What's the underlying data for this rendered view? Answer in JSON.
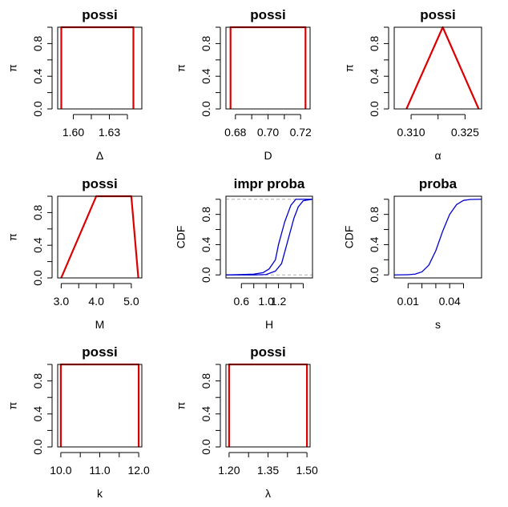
{
  "figure": {
    "background": "#ffffff",
    "axis_color": "#000000"
  },
  "chart_data": [
    {
      "type": "line",
      "title": "possi",
      "xlabel": "Δ",
      "ylabel": "π",
      "xlim": [
        1.587,
        1.657
      ],
      "ylim": [
        0,
        1
      ],
      "xticks": [
        1.6,
        1.615,
        1.63,
        1.645
      ],
      "xticklabels": [
        "1.60",
        "",
        "1.63",
        ""
      ],
      "yticks": [
        0,
        0.2,
        0.4,
        0.6,
        0.8,
        1.0
      ],
      "yticklabels": [
        "0.0",
        "",
        "0.4",
        "",
        "0.8",
        ""
      ],
      "series": [
        {
          "color": "#dd0000",
          "style": "solid",
          "x": [
            1.59,
            1.59,
            1.65,
            1.65
          ],
          "y": [
            0,
            1,
            1,
            0
          ]
        }
      ]
    },
    {
      "type": "line",
      "title": "possi",
      "xlabel": "D",
      "ylabel": "π",
      "xlim": [
        0.6742,
        0.7258
      ],
      "ylim": [
        0,
        1
      ],
      "xticks": [
        0.68,
        0.69,
        0.7,
        0.71,
        0.72
      ],
      "xticklabels": [
        "0.68",
        "",
        "0.70",
        "",
        "0.72"
      ],
      "yticks": [
        0,
        0.2,
        0.4,
        0.6,
        0.8,
        1.0
      ],
      "yticklabels": [
        "0.0",
        "",
        "0.4",
        "",
        "0.8",
        ""
      ],
      "series": [
        {
          "color": "#dd0000",
          "style": "solid",
          "x": [
            0.677,
            0.677,
            0.723,
            0.723
          ],
          "y": [
            0,
            1,
            1,
            0
          ]
        }
      ]
    },
    {
      "type": "line",
      "title": "possi",
      "xlabel": "α",
      "ylabel": "π",
      "xlim": [
        0.3053,
        0.3296
      ],
      "ylim": [
        0,
        1
      ],
      "xticks": [
        0.31,
        0.3175,
        0.325
      ],
      "xticklabels": [
        "0.310",
        "",
        "0.325"
      ],
      "yticks": [
        0,
        0.2,
        0.4,
        0.6,
        0.8,
        1.0
      ],
      "yticklabels": [
        "0.0",
        "",
        "0.4",
        "",
        "0.8",
        ""
      ],
      "series": [
        {
          "color": "#dd0000",
          "style": "solid",
          "x": [
            0.3087,
            0.3188,
            0.3288
          ],
          "y": [
            0,
            1,
            0
          ]
        }
      ]
    },
    {
      "type": "line",
      "title": "possi",
      "xlabel": "M",
      "ylabel": "π",
      "xlim": [
        2.9,
        5.3
      ],
      "ylim": [
        0,
        1
      ],
      "xticks": [
        3.0,
        3.5,
        4.0,
        4.5,
        5.0
      ],
      "xticklabels": [
        "3.0",
        "",
        "4.0",
        "",
        "5.0"
      ],
      "yticks": [
        0,
        0.2,
        0.4,
        0.6,
        0.8,
        1.0
      ],
      "yticklabels": [
        "0.0",
        "",
        "0.4",
        "",
        "0.8",
        ""
      ],
      "series": [
        {
          "color": "#dd0000",
          "style": "solid",
          "x": [
            3.0,
            4.0,
            5.0,
            5.2
          ],
          "y": [
            0,
            1,
            1,
            0
          ]
        }
      ]
    },
    {
      "type": "line",
      "title": "impr proba",
      "xlabel": "H",
      "ylabel": "CDF",
      "xlim": [
        0.35,
        1.75
      ],
      "ylim": [
        -0.04,
        1.04
      ],
      "xticks": [
        0.6,
        0.8,
        1.0,
        1.2,
        1.4,
        1.6
      ],
      "xticklabels": [
        "0.6",
        "",
        "1.0",
        "1.2",
        "",
        ""
      ],
      "yticks": [
        0,
        0.2,
        0.4,
        0.6,
        0.8,
        1.0
      ],
      "yticklabels": [
        "0.0",
        "",
        "0.4",
        "",
        "0.8",
        ""
      ],
      "hlines": [
        0,
        1
      ],
      "series": [
        {
          "color": "#0000cc",
          "style": "solid",
          "x": [
            0.35,
            0.6,
            0.8,
            0.95,
            1.05,
            1.15,
            1.2,
            1.3,
            1.4,
            1.48,
            1.75
          ],
          "y": [
            0,
            0.005,
            0.01,
            0.03,
            0.08,
            0.2,
            0.4,
            0.7,
            0.92,
            1.0,
            1.0
          ]
        },
        {
          "color": "#0000cc",
          "style": "solid",
          "x": [
            0.35,
            0.8,
            1.0,
            1.15,
            1.25,
            1.35,
            1.45,
            1.52,
            1.6,
            1.75
          ],
          "y": [
            0,
            0,
            0.005,
            0.05,
            0.15,
            0.45,
            0.75,
            0.9,
            0.98,
            1.0
          ]
        }
      ]
    },
    {
      "type": "line",
      "title": "proba",
      "xlabel": "s",
      "ylabel": "CDF",
      "xlim": [
        0.0,
        0.063
      ],
      "ylim": [
        -0.04,
        1.04
      ],
      "xticks": [
        0.01,
        0.02,
        0.03,
        0.04,
        0.05
      ],
      "xticklabels": [
        "0.01",
        "",
        "",
        "0.04",
        ""
      ],
      "yticks": [
        0,
        0.2,
        0.4,
        0.6,
        0.8,
        1.0
      ],
      "yticklabels": [
        "0.0",
        "",
        "0.4",
        "",
        "0.8",
        ""
      ],
      "series": [
        {
          "color": "#0000cc",
          "style": "solid",
          "x": [
            0.0,
            0.01,
            0.015,
            0.02,
            0.025,
            0.03,
            0.035,
            0.04,
            0.045,
            0.05,
            0.055,
            0.063
          ],
          "y": [
            0,
            0.002,
            0.01,
            0.04,
            0.13,
            0.32,
            0.58,
            0.8,
            0.93,
            0.985,
            0.998,
            1.0
          ]
        }
      ]
    },
    {
      "type": "line",
      "title": "possi",
      "xlabel": "k",
      "ylabel": "π",
      "xlim": [
        9.92,
        12.08
      ],
      "ylim": [
        0,
        1
      ],
      "xticks": [
        10.0,
        10.5,
        11.0,
        11.5,
        12.0
      ],
      "xticklabels": [
        "10.0",
        "",
        "11.0",
        "",
        "12.0"
      ],
      "yticks": [
        0,
        0.2,
        0.4,
        0.6,
        0.8,
        1.0
      ],
      "yticklabels": [
        "0.0",
        "",
        "0.4",
        "",
        "0.8",
        ""
      ],
      "series": [
        {
          "color": "#dd0000",
          "style": "solid",
          "x": [
            10.0,
            10.0,
            12.0,
            12.0
          ],
          "y": [
            0,
            1,
            1,
            0
          ]
        }
      ]
    },
    {
      "type": "line",
      "title": "possi",
      "xlabel": "λ",
      "ylabel": "π",
      "xlim": [
        1.188,
        1.512
      ],
      "ylim": [
        0,
        1
      ],
      "xticks": [
        1.2,
        1.275,
        1.35,
        1.425,
        1.5
      ],
      "xticklabels": [
        "1.20",
        "",
        "1.35",
        "",
        "1.50"
      ],
      "yticks": [
        0,
        0.2,
        0.4,
        0.6,
        0.8,
        1.0
      ],
      "yticklabels": [
        "0.0",
        "",
        "0.4",
        "",
        "0.8",
        ""
      ],
      "series": [
        {
          "color": "#dd0000",
          "style": "solid",
          "x": [
            1.2,
            1.2,
            1.5,
            1.5
          ],
          "y": [
            0,
            1,
            1,
            0
          ]
        }
      ]
    }
  ]
}
